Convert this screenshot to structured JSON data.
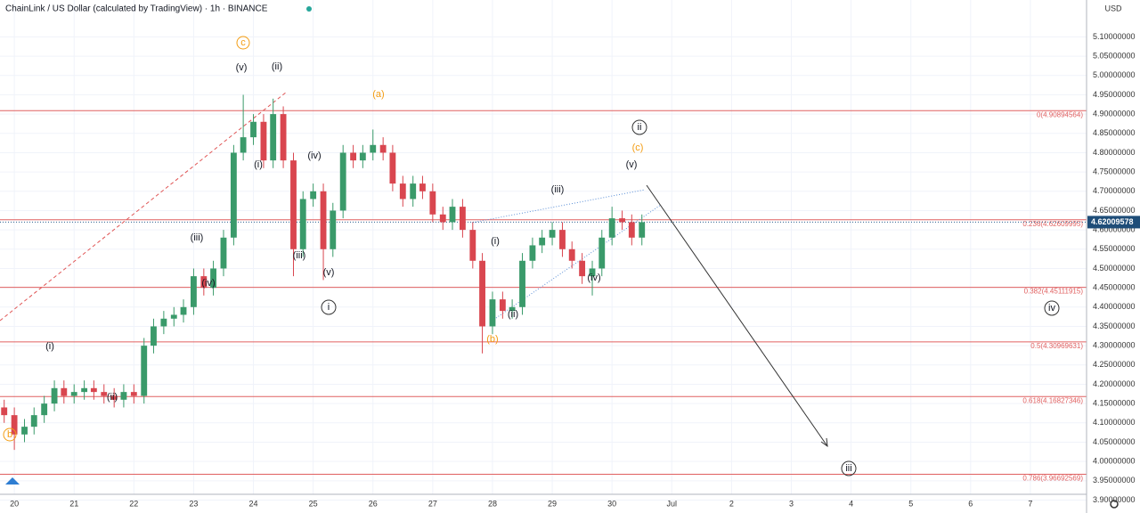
{
  "chart_data": {
    "type": "candlestick",
    "title": "ChainLink / US Dollar (calculated by TradingView) · 1h · BINANCE",
    "currency": "USD",
    "x": [
      19.83,
      20.0,
      20.17,
      20.33,
      20.5,
      20.67,
      20.83,
      21.0,
      21.17,
      21.33,
      21.5,
      21.67,
      21.83,
      22.0,
      22.17,
      22.33,
      22.5,
      22.67,
      22.83,
      23.0,
      23.17,
      23.33,
      23.5,
      23.67,
      23.83,
      24.0,
      24.17,
      24.33,
      24.5,
      24.67,
      24.83,
      25.0,
      25.17,
      25.33,
      25.5,
      25.67,
      25.83,
      26.0,
      26.17,
      26.33,
      26.5,
      26.67,
      26.83,
      27.0,
      27.17,
      27.33,
      27.5,
      27.67,
      27.83,
      28.0,
      28.17,
      28.33,
      28.5,
      28.67,
      28.83,
      29.0,
      29.17,
      29.33,
      29.5,
      29.67,
      29.83,
      30.0,
      30.17,
      30.33,
      30.5
    ],
    "open": [
      4.14,
      4.12,
      4.07,
      4.09,
      4.12,
      4.15,
      4.19,
      4.17,
      4.18,
      4.19,
      4.18,
      4.17,
      4.16,
      4.18,
      4.17,
      4.3,
      4.35,
      4.37,
      4.38,
      4.4,
      4.48,
      4.45,
      4.5,
      4.58,
      4.8,
      4.84,
      4.88,
      4.78,
      4.9,
      4.78,
      4.55,
      4.68,
      4.7,
      4.55,
      4.65,
      4.8,
      4.78,
      4.8,
      4.82,
      4.8,
      4.72,
      4.68,
      4.72,
      4.7,
      4.64,
      4.62,
      4.66,
      4.6,
      4.52,
      4.35,
      4.42,
      4.39,
      4.4,
      4.52,
      4.56,
      4.58,
      4.6,
      4.55,
      4.52,
      4.48,
      4.5,
      4.58,
      4.63,
      4.62,
      4.58
    ],
    "high": [
      4.16,
      4.14,
      4.11,
      4.14,
      4.17,
      4.21,
      4.21,
      4.2,
      4.21,
      4.21,
      4.2,
      4.19,
      4.2,
      4.2,
      4.32,
      4.37,
      4.39,
      4.4,
      4.42,
      4.5,
      4.5,
      4.52,
      4.6,
      4.82,
      4.95,
      4.9,
      4.9,
      4.94,
      4.92,
      4.8,
      4.7,
      4.72,
      4.72,
      4.67,
      4.82,
      4.82,
      4.82,
      4.86,
      4.84,
      4.82,
      4.74,
      4.74,
      4.74,
      4.72,
      4.66,
      4.68,
      4.68,
      4.62,
      4.54,
      4.44,
      4.44,
      4.42,
      4.54,
      4.58,
      4.6,
      4.62,
      4.62,
      4.57,
      4.54,
      4.52,
      4.6,
      4.66,
      4.65,
      4.64,
      4.64
    ],
    "low": [
      4.1,
      4.03,
      4.05,
      4.07,
      4.1,
      4.13,
      4.15,
      4.15,
      4.16,
      4.16,
      4.15,
      4.14,
      4.14,
      4.15,
      4.15,
      4.28,
      4.33,
      4.35,
      4.36,
      4.38,
      4.43,
      4.43,
      4.48,
      4.56,
      4.78,
      4.82,
      4.76,
      4.76,
      4.76,
      4.48,
      4.53,
      4.66,
      4.47,
      4.53,
      4.63,
      4.76,
      4.76,
      4.78,
      4.78,
      4.7,
      4.66,
      4.66,
      4.68,
      4.62,
      4.6,
      4.6,
      4.58,
      4.5,
      4.28,
      4.33,
      4.37,
      4.37,
      4.38,
      4.5,
      4.54,
      4.56,
      4.53,
      4.5,
      4.46,
      4.43,
      4.48,
      4.56,
      4.6,
      4.56,
      4.56
    ],
    "close": [
      4.12,
      4.07,
      4.09,
      4.12,
      4.15,
      4.19,
      4.17,
      4.18,
      4.19,
      4.18,
      4.17,
      4.16,
      4.18,
      4.17,
      4.3,
      4.35,
      4.37,
      4.38,
      4.4,
      4.48,
      4.45,
      4.5,
      4.58,
      4.8,
      4.84,
      4.88,
      4.78,
      4.9,
      4.78,
      4.55,
      4.68,
      4.7,
      4.55,
      4.65,
      4.8,
      4.78,
      4.8,
      4.82,
      4.8,
      4.72,
      4.68,
      4.72,
      4.7,
      4.64,
      4.62,
      4.66,
      4.6,
      4.52,
      4.35,
      4.42,
      4.39,
      4.4,
      4.52,
      4.56,
      4.58,
      4.6,
      4.55,
      4.52,
      4.48,
      4.5,
      4.58,
      4.63,
      4.62,
      4.58,
      4.62
    ],
    "colors": {
      "up": "#3a9a6a",
      "down": "#d9464f",
      "fib": "#e06060"
    },
    "last_price": 4.62009578,
    "fib_levels": [
      {
        "value": 4.90894564,
        "label": "0(4.90894564)"
      },
      {
        "value": 4.62609995,
        "label": "0.236(4.62609995)"
      },
      {
        "value": 4.45111915,
        "label": "0.382(4.45111915)"
      },
      {
        "value": 4.30969631,
        "label": "0.5(4.30969631)"
      },
      {
        "value": 4.16827346,
        "label": "0.618(4.16827346)"
      },
      {
        "value": 3.96692569,
        "label": "0.786(3.96692569)"
      }
    ],
    "xlim": [
      19.76,
      37.94
    ],
    "xticks": [
      20,
      21,
      22,
      23,
      24,
      25,
      26,
      27,
      28,
      29,
      30,
      {
        "value": 31,
        "label": "Jul"
      },
      {
        "value": 32,
        "label": "2"
      },
      {
        "value": 33,
        "label": "3"
      },
      {
        "value": 34,
        "label": "4"
      },
      {
        "value": 35,
        "label": "5"
      },
      {
        "value": 36,
        "label": "6"
      },
      {
        "value": 37,
        "label": "7"
      }
    ],
    "ylim": [
      3.8665,
      5.1956
    ],
    "yticks": [
      {
        "value": 5.1,
        "label": "5.10000000"
      },
      {
        "value": 5.05,
        "label": "5.05000000"
      },
      {
        "value": 5.0,
        "label": "5.00000000"
      },
      {
        "value": 4.95,
        "label": "4.95000000"
      },
      {
        "value": 4.9,
        "label": "4.90000000"
      },
      {
        "value": 4.85,
        "label": "4.85000000"
      },
      {
        "value": 4.8,
        "label": "4.80000000"
      },
      {
        "value": 4.75,
        "label": "4.75000000"
      },
      {
        "value": 4.7,
        "label": "4.70000000"
      },
      {
        "value": 4.65,
        "label": "4.65000000"
      },
      {
        "value": 4.6,
        "label": "4.60000000"
      },
      {
        "value": 4.55,
        "label": "4.55000000"
      },
      {
        "value": 4.5,
        "label": "4.50000000"
      },
      {
        "value": 4.45,
        "label": "4.45000000"
      },
      {
        "value": 4.4,
        "label": "4.40000000"
      },
      {
        "value": 4.35,
        "label": "4.35000000"
      },
      {
        "value": 4.3,
        "label": "4.30000000"
      },
      {
        "value": 4.25,
        "label": "4.25000000"
      },
      {
        "value": 4.2,
        "label": "4.20000000"
      },
      {
        "value": 4.15,
        "label": "4.15000000"
      },
      {
        "value": 4.1,
        "label": "4.10000000"
      },
      {
        "value": 4.05,
        "label": "4.05000000"
      },
      {
        "value": 4.0,
        "label": "4.00000000"
      },
      {
        "value": 3.95,
        "label": "3.95000000"
      },
      {
        "value": 3.9,
        "label": "3.90000000"
      }
    ],
    "grid": true,
    "annotations": [
      "c",
      "(v)",
      "(ii)",
      "(a)",
      "ii",
      "(c)",
      "(v)",
      "(i)",
      "(iv)",
      "(iii)",
      "(iii)",
      "(i)",
      "(iii)",
      "(iv)",
      "(v)",
      "(iv)",
      "i",
      "(ii)",
      "iv",
      "(b)",
      "(i)",
      "(ii)",
      "b",
      "iii"
    ]
  }
}
